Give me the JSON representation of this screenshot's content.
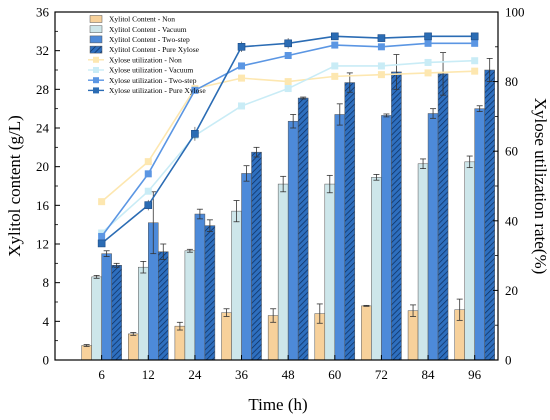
{
  "chart_data": {
    "type": "bar",
    "categories": [
      "6",
      "12",
      "24",
      "36",
      "48",
      "60",
      "72",
      "84",
      "96"
    ],
    "xlabel": "Time (h)",
    "ylabel": "Xylitol content (g/L)",
    "y2label": "Xylose utilization rate(%)",
    "ylim": [
      0,
      36
    ],
    "y2lim": [
      0,
      100
    ],
    "yticks": [
      "0",
      "4",
      "8",
      "12",
      "16",
      "20",
      "24",
      "28",
      "32",
      "36"
    ],
    "y2ticks": [
      "0",
      "20",
      "40",
      "60",
      "80",
      "100"
    ],
    "legend_position": "top-left",
    "bar_series": [
      {
        "name": "Xylitol Content - Non",
        "color": "#f7d19b",
        "hatch": false,
        "values": [
          1.5,
          2.7,
          3.5,
          4.9,
          4.6,
          4.8,
          5.6,
          5.1,
          5.2
        ],
        "errors": [
          0.1,
          0.15,
          0.4,
          0.4,
          0.7,
          1.0,
          0.05,
          0.6,
          1.1
        ]
      },
      {
        "name": "Xylitol Content - Vacuum",
        "color": "#cde6ea",
        "hatch": false,
        "values": [
          8.6,
          9.6,
          11.3,
          15.4,
          18.2,
          18.2,
          18.9,
          20.3,
          20.5
        ],
        "errors": [
          0.15,
          0.6,
          0.15,
          1.1,
          0.8,
          0.9,
          0.3,
          0.5,
          0.6
        ]
      },
      {
        "name": "Xylitol Content - Two-step",
        "color": "#4d8ad9",
        "hatch": false,
        "values": [
          11.0,
          14.2,
          15.1,
          19.3,
          24.7,
          25.4,
          25.3,
          25.5,
          26.0
        ],
        "errors": [
          0.3,
          3.2,
          0.5,
          0.8,
          0.7,
          1.1,
          0.15,
          0.5,
          0.3
        ]
      },
      {
        "name": "Xylitol Content - Pure Xylose",
        "color": "#2e6fbf",
        "hatch": true,
        "values": [
          9.8,
          11.2,
          13.9,
          21.5,
          27.1,
          28.7,
          29.8,
          29.6,
          30.0
        ],
        "errors": [
          0.2,
          0.8,
          0.6,
          0.5,
          0.1,
          1.0,
          1.8,
          2.2,
          1.2
        ]
      }
    ],
    "line_series": [
      {
        "name": "Xylose utilization - Non",
        "color": "#fde7b0",
        "values": [
          45.5,
          57.0,
          78.0,
          81.0,
          80.0,
          81.5,
          82.0,
          82.5,
          83.0
        ]
      },
      {
        "name": "Xylose utilization - Vacuum",
        "color": "#c9ecf6",
        "values": [
          36.5,
          48.5,
          64.5,
          73.0,
          78.0,
          84.5,
          84.5,
          85.5,
          86.0
        ]
      },
      {
        "name": "Xylose utilization - Two-step",
        "color": "#5b96e3",
        "values": [
          35.5,
          53.5,
          77.5,
          84.5,
          87.5,
          90.5,
          90.0,
          91.0,
          91.0
        ]
      },
      {
        "name": "Xylose utilization - Pure Xylose",
        "color": "#2b6cb4",
        "values": [
          33.5,
          44.5,
          65.0,
          90.0,
          91.0,
          93.0,
          92.5,
          93.0,
          93.0
        ],
        "errors": [
          1.0,
          1.5,
          2.0,
          1.5,
          1.5,
          1.0,
          1.0,
          1.0,
          1.0
        ]
      }
    ]
  }
}
